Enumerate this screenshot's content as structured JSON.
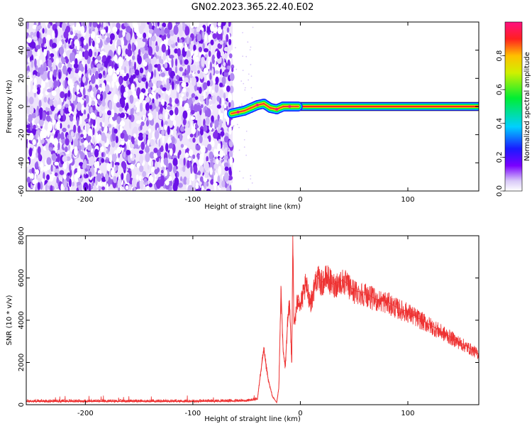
{
  "title": "GN02.2023.365.22.40.E02",
  "colors": {
    "snr_line": "#ee3333",
    "axis": "#000000"
  },
  "chart_data": [
    {
      "type": "heatmap",
      "name": "spectrogram",
      "xlabel": "Height of straight line (km)",
      "ylabel": "Frequency (Hz)",
      "xlim": [
        -255,
        166
      ],
      "ylim": [
        -60,
        60
      ],
      "x_ticks": [
        -200,
        -100,
        0,
        100
      ],
      "x_tick_labels": [
        "-200",
        "-100",
        "0",
        "100"
      ],
      "y_ticks": [
        -60,
        -40,
        -20,
        0,
        20,
        40,
        60
      ],
      "y_tick_labels": [
        "-60",
        "-40",
        "-20",
        "0",
        "20",
        "40",
        "60"
      ],
      "noise_region_x": [
        -255,
        -63
      ],
      "meteor_head_track": [
        {
          "x": -64,
          "y": -5
        },
        {
          "x": -58,
          "y": -4
        },
        {
          "x": -52,
          "y": -3
        },
        {
          "x": -46,
          "y": -1
        },
        {
          "x": -40,
          "y": 1
        },
        {
          "x": -34,
          "y": 2
        },
        {
          "x": -28,
          "y": -1
        },
        {
          "x": -22,
          "y": -2
        },
        {
          "x": -16,
          "y": 0
        },
        {
          "x": -10,
          "y": 0
        },
        {
          "x": -2,
          "y": 0
        }
      ],
      "constant_band": {
        "x": [
          -2,
          166
        ],
        "y": 0
      },
      "colorbar": {
        "label": "Normalized spectral amplitude",
        "ticks": [
          0.0,
          0.2,
          0.4,
          0.6,
          0.8
        ],
        "tick_labels": [
          "0.0",
          "0.2",
          "0.4",
          "0.6",
          "0.8"
        ],
        "range": [
          0,
          1
        ]
      },
      "grid": false
    },
    {
      "type": "line",
      "name": "snr",
      "xlabel": "Height of straight line (km)",
      "ylabel": "SNR (10 * v/v)",
      "xlim": [
        -255,
        166
      ],
      "ylim": [
        0,
        8000
      ],
      "x_ticks": [
        -200,
        -100,
        0,
        100
      ],
      "x_tick_labels": [
        "-200",
        "-100",
        "0",
        "100"
      ],
      "y_ticks": [
        0,
        2000,
        4000,
        6000,
        8000
      ],
      "y_tick_labels": [
        "0",
        "2000",
        "4000",
        "6000",
        "8000"
      ],
      "series": [
        {
          "x": [
            -255,
            -200,
            -150,
            -100,
            -50,
            -40,
            -37,
            -34,
            -30,
            -26,
            -22,
            -20,
            -18,
            -16,
            -14,
            -12,
            -10,
            -8,
            -7,
            -6,
            -4,
            -2,
            0,
            5,
            10,
            15,
            20,
            25,
            30,
            40,
            50,
            60,
            70,
            80,
            90,
            100,
            110,
            120,
            130,
            140,
            150,
            160,
            166
          ],
          "y": [
            150,
            150,
            150,
            150,
            170,
            250,
            1500,
            2600,
            1200,
            400,
            100,
            800,
            5500,
            2500,
            1800,
            3800,
            4800,
            2000,
            8000,
            3800,
            4400,
            5200,
            4700,
            5700,
            4900,
            6100,
            5800,
            6100,
            5700,
            5900,
            5400,
            5300,
            5000,
            4900,
            4600,
            4400,
            4100,
            3800,
            3500,
            3200,
            2900,
            2600,
            2400
          ]
        }
      ],
      "grid": false
    }
  ]
}
